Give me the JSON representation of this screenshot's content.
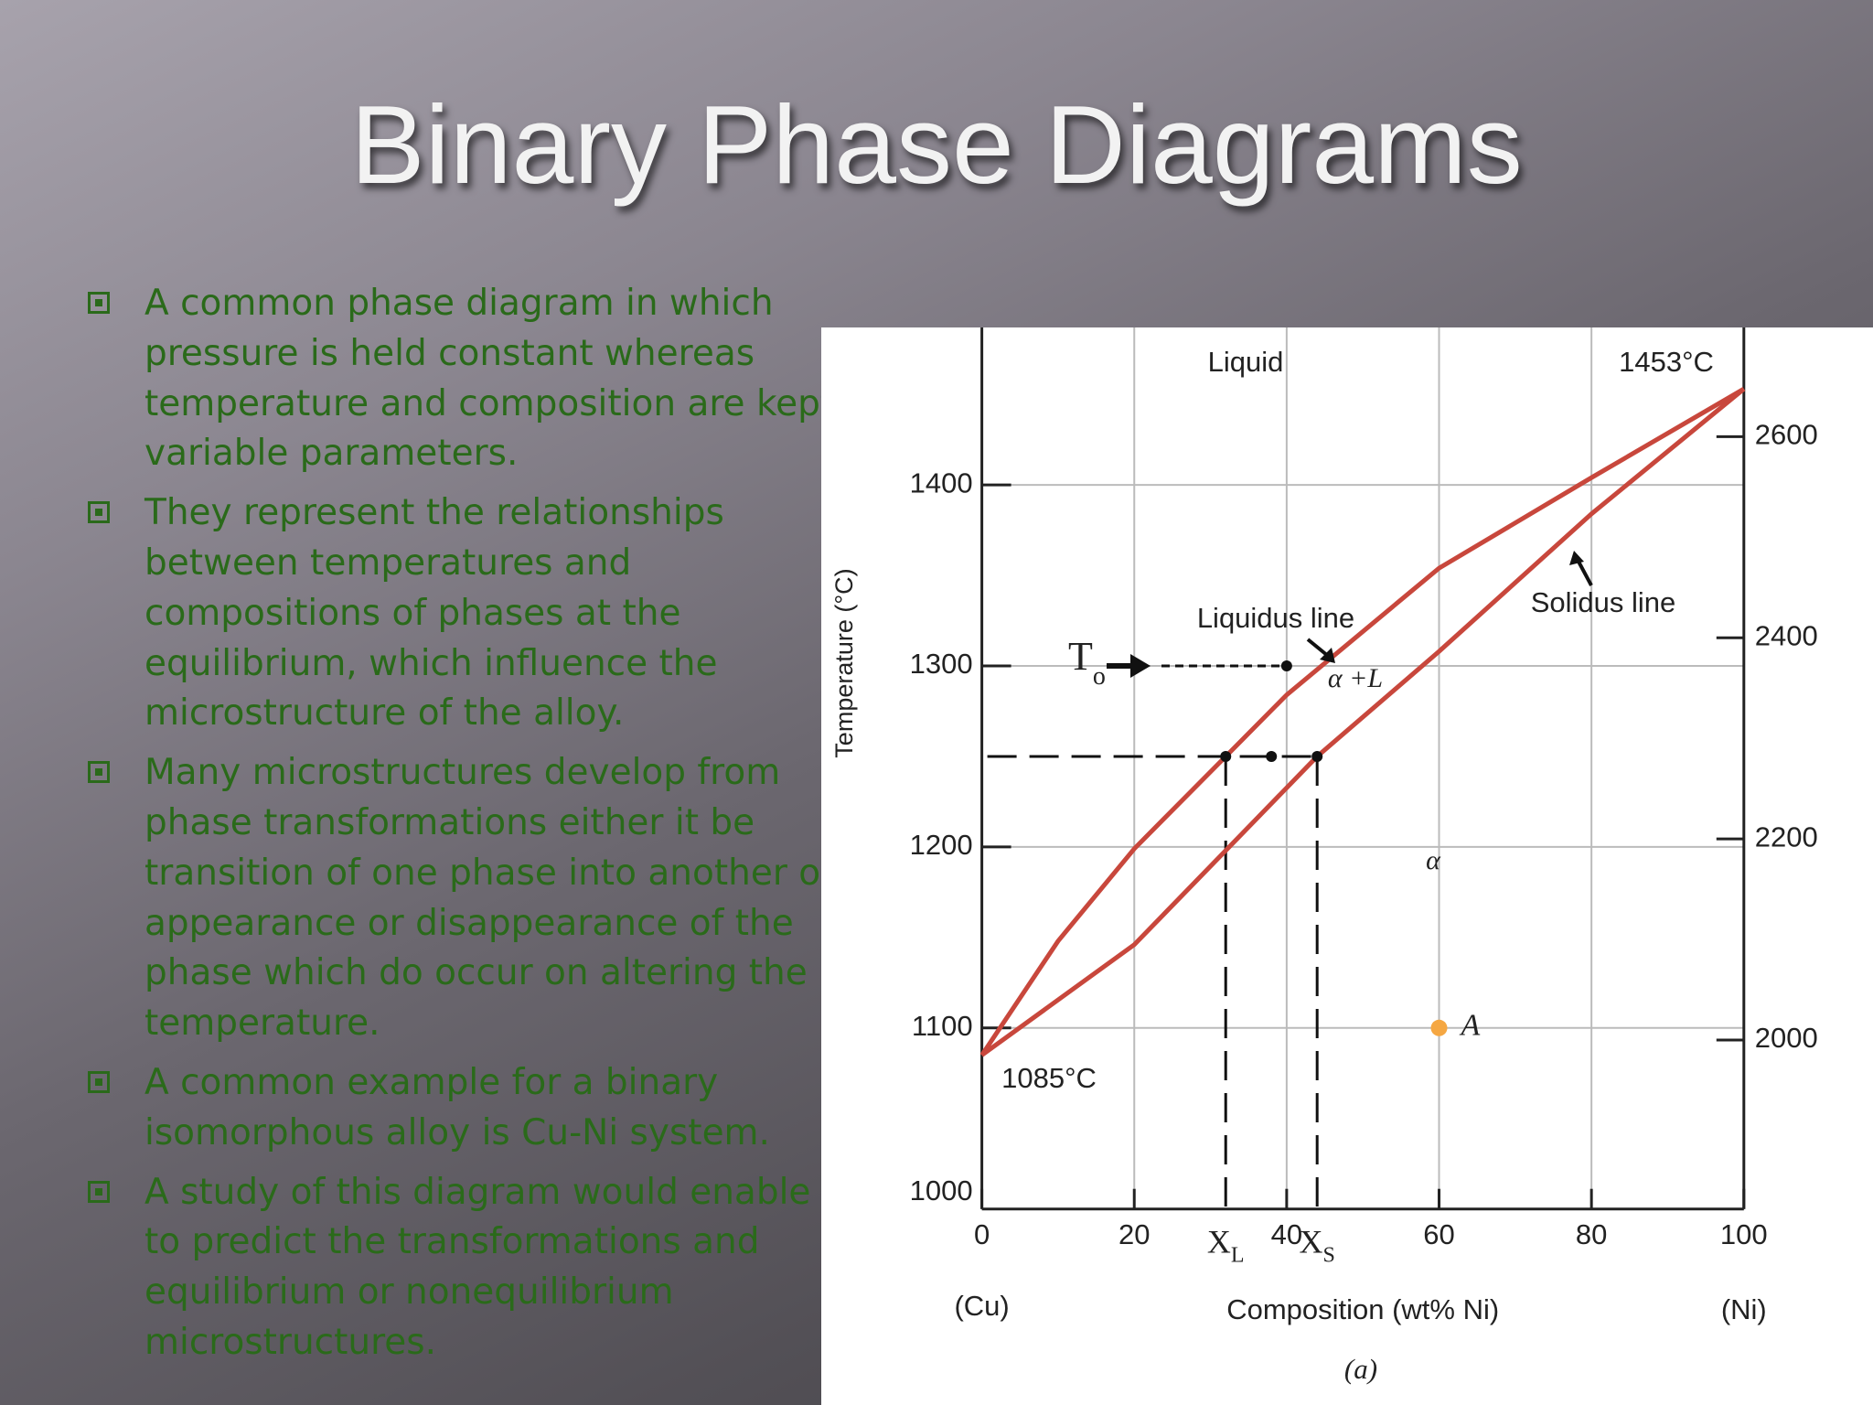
{
  "title": "Binary Phase Diagrams",
  "bullets": [
    [
      "A common phase diagram in which",
      "pressure is held constant whereas",
      "temperature and composition are kept",
      "variable parameters."
    ],
    [
      "They represent the relationships",
      "between temperatures and",
      "compositions of phases at the",
      "equilibrium, which influence the",
      "microstructure of the alloy."
    ],
    [
      "Many microstructures develop from",
      "phase transformations either it be",
      "transition of one phase into another or",
      "appearance or disappearance of the",
      "phase which do occur on altering the",
      "temperature."
    ],
    [
      "A common example for a binary",
      "isomorphous alloy is Cu-Ni system."
    ],
    [
      "A study of this diagram would enable us",
      "to predict the transformations and",
      "equilibrium or nonequilibrium",
      "microstructures."
    ]
  ],
  "chart_data": {
    "type": "line",
    "xlabel": "Composition (wt% Ni)",
    "ylabel": "Temperature (°C)",
    "caption": "(a)",
    "x_end_labels": [
      "(Cu)",
      "(Ni)"
    ],
    "xlim": [
      0,
      100
    ],
    "xticks": [
      0,
      20,
      40,
      60,
      80,
      100
    ],
    "ylim": [
      1000,
      1480
    ],
    "yticks": [
      1000,
      1100,
      1200,
      1300,
      1400
    ],
    "y2lim": [
      1832,
      2696
    ],
    "y2ticks": [
      2000,
      2200,
      2400,
      2600
    ],
    "grid": true,
    "series": [
      {
        "name": "Liquidus line",
        "color": "#c8473c",
        "x": [
          0,
          10,
          20,
          32,
          40,
          60,
          80,
          100
        ],
        "values": [
          1085,
          1148,
          1199,
          1250,
          1284,
          1354,
          1404,
          1453
        ]
      },
      {
        "name": "Solidus line",
        "color": "#c8473c",
        "x": [
          0,
          20,
          44,
          60,
          80,
          100
        ],
        "values": [
          1085,
          1146,
          1250,
          1308,
          1384,
          1453
        ]
      }
    ],
    "points": {
      "x": [
        40,
        32,
        38,
        44,
        60
      ],
      "values": [
        1300,
        1250,
        1250,
        1250,
        1100
      ],
      "colors": [
        "#111111",
        "#111111",
        "#111111",
        "#111111",
        "#f5a742"
      ],
      "last_label": "A"
    },
    "composition_marks": [
      {
        "value": 32,
        "label": "X",
        "sub": "L"
      },
      {
        "value": 44,
        "label": "X",
        "sub": "S"
      }
    ],
    "temperature_label": {
      "label": "T",
      "sub": "o"
    },
    "annotations": [
      "Liquid",
      "1453°C",
      "1085°C",
      "α +L",
      "α"
    ]
  }
}
